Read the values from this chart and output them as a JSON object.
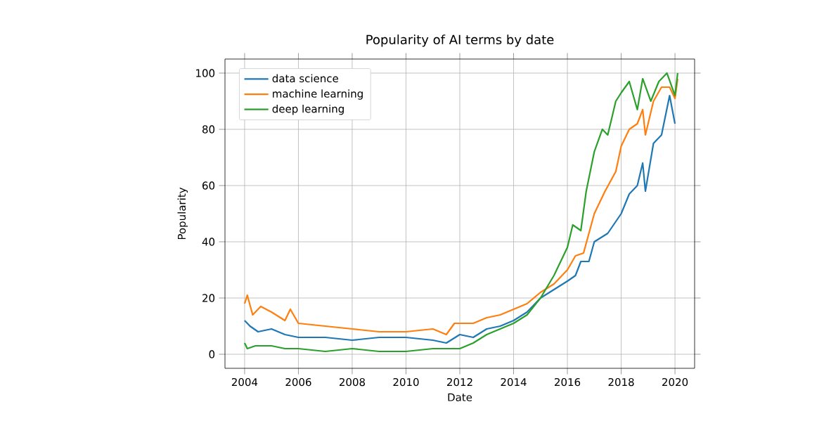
{
  "chart_data": {
    "type": "line",
    "title": "Popularity of AI terms by date",
    "xlabel": "Date",
    "ylabel": "Popularity",
    "xlim": [
      2003.27,
      2020.73
    ],
    "xticks": [
      2004,
      2006,
      2008,
      2010,
      2012,
      2014,
      2016,
      2018,
      2020
    ],
    "ylim": [
      -5,
      105
    ],
    "yticks": [
      0,
      20,
      40,
      60,
      80,
      100
    ],
    "grid": true,
    "legend": "top left",
    "series": [
      {
        "name": "data science",
        "color": "#1f77b4",
        "x": [
          2004,
          2004.2,
          2004.5,
          2005,
          2005.5,
          2006,
          2007,
          2008,
          2009,
          2010,
          2011,
          2011.5,
          2012,
          2012.5,
          2013,
          2013.5,
          2014,
          2014.5,
          2015,
          2015.5,
          2016,
          2016.3,
          2016.5,
          2016.8,
          2017,
          2017.5,
          2018,
          2018.3,
          2018.6,
          2018.8,
          2018.9,
          2019.2,
          2019.5,
          2019.8,
          2020
        ],
        "values": [
          12,
          10,
          8,
          9,
          7,
          6,
          6,
          5,
          6,
          6,
          5,
          4,
          7,
          6,
          9,
          10,
          12,
          15,
          20,
          23,
          26,
          28,
          33,
          33,
          40,
          43,
          50,
          57,
          60,
          68,
          58,
          75,
          78,
          92,
          82
        ]
      },
      {
        "name": "machine learning",
        "color": "#ff7f0e",
        "x": [
          2004,
          2004.1,
          2004.3,
          2004.6,
          2005,
          2005.5,
          2005.7,
          2006,
          2007,
          2008,
          2009,
          2010,
          2011,
          2011.5,
          2011.8,
          2012.5,
          2013,
          2013.5,
          2014,
          2014.5,
          2015,
          2015.5,
          2016,
          2016.3,
          2016.6,
          2017,
          2017.4,
          2017.8,
          2018,
          2018.3,
          2018.6,
          2018.8,
          2018.9,
          2019.2,
          2019.5,
          2019.8,
          2020,
          2020.1
        ],
        "values": [
          18,
          21,
          14,
          17,
          15,
          12,
          16,
          11,
          10,
          9,
          8,
          8,
          9,
          7,
          11,
          11,
          13,
          14,
          16,
          18,
          22,
          25,
          30,
          35,
          36,
          50,
          58,
          65,
          74,
          80,
          82,
          87,
          78,
          90,
          95,
          95,
          91,
          98
        ]
      },
      {
        "name": "deep learning",
        "color": "#2ca02c",
        "x": [
          2004,
          2004.1,
          2004.4,
          2005,
          2005.5,
          2006,
          2007,
          2008,
          2009,
          2010,
          2011,
          2012,
          2012.5,
          2013,
          2013.5,
          2014,
          2014.5,
          2015,
          2015.5,
          2016,
          2016.2,
          2016.5,
          2016.7,
          2017,
          2017.3,
          2017.5,
          2017.8,
          2018,
          2018.3,
          2018.6,
          2018.8,
          2019.1,
          2019.4,
          2019.7,
          2020,
          2020.1
        ],
        "values": [
          4,
          2,
          3,
          3,
          2,
          2,
          1,
          2,
          1,
          1,
          2,
          2,
          4,
          7,
          9,
          11,
          14,
          20,
          28,
          38,
          46,
          44,
          58,
          72,
          80,
          78,
          90,
          93,
          97,
          87,
          98,
          90,
          97,
          100,
          92,
          100
        ]
      }
    ]
  }
}
